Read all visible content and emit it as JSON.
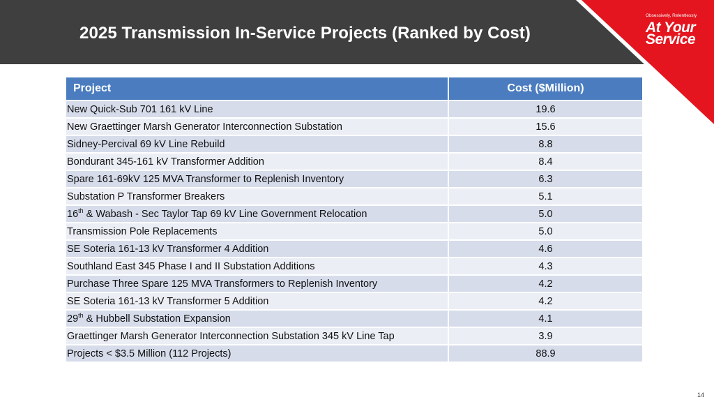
{
  "slide": {
    "title": "2025 Transmission In-Service Projects (Ranked by Cost)",
    "page_number": "14"
  },
  "logo": {
    "tagline": "Obsessively, Relentlessly",
    "line1": "At Your",
    "line2": "Service",
    "color": "#e4151f"
  },
  "table": {
    "headers": {
      "project": "Project",
      "cost": "Cost ($Million)"
    },
    "rows": [
      {
        "pre": "New Quick-Sub 701 161 kV Line",
        "sup": "",
        "post": "",
        "cost": "19.6"
      },
      {
        "pre": "New Graettinger Marsh Generator Interconnection Substation",
        "sup": "",
        "post": "",
        "cost": "15.6"
      },
      {
        "pre": "Sidney-Percival 69 kV Line Rebuild",
        "sup": "",
        "post": "",
        "cost": "8.8"
      },
      {
        "pre": "Bondurant 345-161 kV Transformer Addition",
        "sup": "",
        "post": "",
        "cost": "8.4"
      },
      {
        "pre": "Spare 161-69kV 125 MVA Transformer to Replenish Inventory",
        "sup": "",
        "post": "",
        "cost": "6.3"
      },
      {
        "pre": "Substation P Transformer Breakers",
        "sup": "",
        "post": "",
        "cost": "5.1"
      },
      {
        "pre": "16",
        "sup": "th",
        "post": " & Wabash - Sec Taylor Tap 69 kV Line Government Relocation",
        "cost": "5.0"
      },
      {
        "pre": "Transmission Pole Replacements",
        "sup": "",
        "post": "",
        "cost": "5.0"
      },
      {
        "pre": "SE Soteria 161-13 kV Transformer 4 Addition",
        "sup": "",
        "post": "",
        "cost": "4.6"
      },
      {
        "pre": "Southland East 345 Phase I and II Substation Additions",
        "sup": "",
        "post": "",
        "cost": "4.3"
      },
      {
        "pre": "Purchase Three Spare 125 MVA Transformers to Replenish Inventory",
        "sup": "",
        "post": "",
        "cost": "4.2"
      },
      {
        "pre": "SE Soteria 161-13 kV Transformer 5 Addition",
        "sup": "",
        "post": "",
        "cost": "4.2"
      },
      {
        "pre": "29",
        "sup": "th",
        "post": " & Hubbell Substation Expansion",
        "cost": "4.1"
      },
      {
        "pre": "Graettinger Marsh Generator Interconnection Substation 345 kV Line Tap",
        "sup": "",
        "post": "",
        "cost": "3.9"
      },
      {
        "pre": "Projects < $3.5 Million (112 Projects)",
        "sup": "",
        "post": "",
        "cost": "88.9"
      }
    ]
  }
}
